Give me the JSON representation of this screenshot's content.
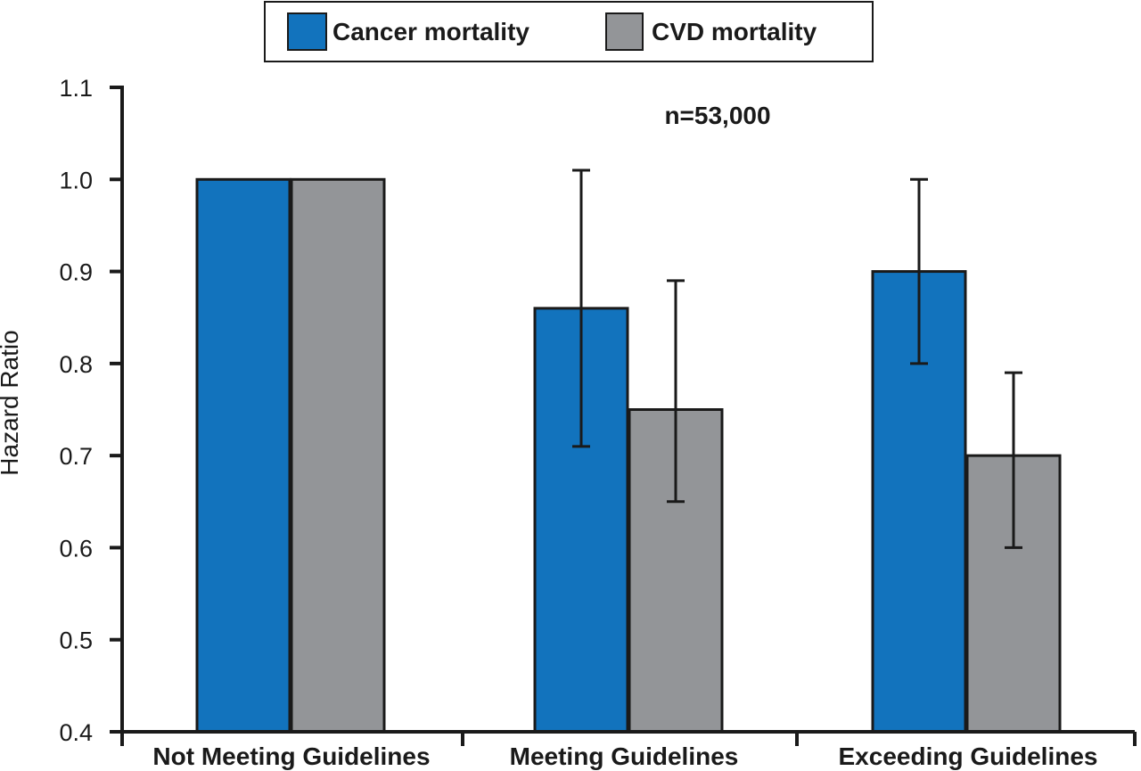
{
  "chart_data": {
    "type": "bar",
    "title": "",
    "xlabel": "",
    "ylabel": "Hazard Ratio",
    "ylim": [
      0.4,
      1.1
    ],
    "yticks": [
      "0.4",
      "0.5",
      "0.6",
      "0.7",
      "0.8",
      "0.9",
      "1.0",
      "1.1"
    ],
    "categories": [
      "Not Meeting Guidelines",
      "Meeting Guidelines",
      "Exceeding Guidelines"
    ],
    "series": [
      {
        "name": "Cancer mortality",
        "color": "#1273bd",
        "values": [
          1.0,
          0.86,
          0.9
        ],
        "error_low": [
          null,
          0.71,
          0.8
        ],
        "error_high": [
          null,
          1.01,
          1.0
        ]
      },
      {
        "name": "CVD mortality",
        "color": "#939598",
        "values": [
          1.0,
          0.75,
          0.7
        ],
        "error_low": [
          null,
          0.65,
          0.6
        ],
        "error_high": [
          null,
          0.89,
          0.79
        ]
      }
    ],
    "annotation": "n=53,000",
    "legend_position": "top-center",
    "grid": false
  }
}
